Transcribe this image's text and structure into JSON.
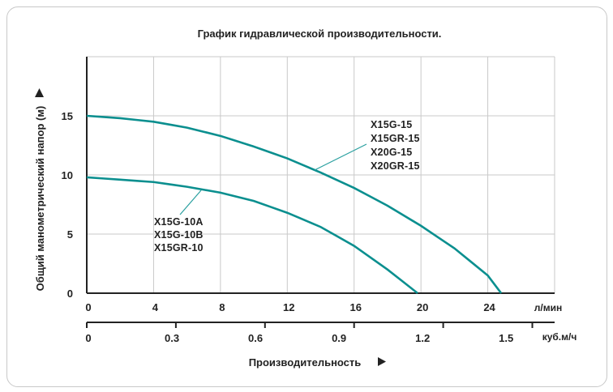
{
  "chart_data": {
    "type": "line",
    "title": "График гидравлической производительности.",
    "ylabel": "Общий манометрический напор (м)",
    "xlabel": "Производительность",
    "xunit_primary": "л/мин",
    "xunit_secondary": "куб.м/ч",
    "ylim": [
      0,
      20
    ],
    "xlim": [
      0,
      28
    ],
    "yticks": [
      "0",
      "5",
      "10",
      "15"
    ],
    "xticks_primary": [
      "0",
      "4",
      "8",
      "12",
      "16",
      "20",
      "24"
    ],
    "xticks_secondary": [
      "0",
      "0.3",
      "0.6",
      "0.9",
      "1.2",
      "1.5"
    ],
    "series": [
      {
        "name": "X15G-15 / X15GR-15 / X20G-15 / X20GR-15",
        "label_lines": [
          "X15G-15",
          "X15GR-15",
          "X20G-15",
          "X20GR-15"
        ],
        "x": [
          0,
          2,
          4,
          6,
          8,
          10,
          12,
          14,
          16,
          18,
          20,
          22,
          24,
          24.8
        ],
        "y": [
          15.0,
          14.8,
          14.5,
          14.0,
          13.3,
          12.4,
          11.4,
          10.2,
          8.9,
          7.4,
          5.7,
          3.8,
          1.5,
          0
        ]
      },
      {
        "name": "X15G-10A / X15G-10B / X15GR-10",
        "label_lines": [
          "X15G-10A",
          "X15G-10B",
          "X15GR-10"
        ],
        "x": [
          0,
          2,
          4,
          6,
          8,
          10,
          12,
          14,
          16,
          18,
          19.8
        ],
        "y": [
          9.8,
          9.6,
          9.4,
          9.0,
          8.5,
          7.8,
          6.8,
          5.6,
          4.0,
          2.0,
          0
        ]
      }
    ],
    "colors": {
      "curve": "#0b8f8f",
      "grid": "#c9c9c9",
      "axis": "#222222"
    },
    "grid": true
  }
}
